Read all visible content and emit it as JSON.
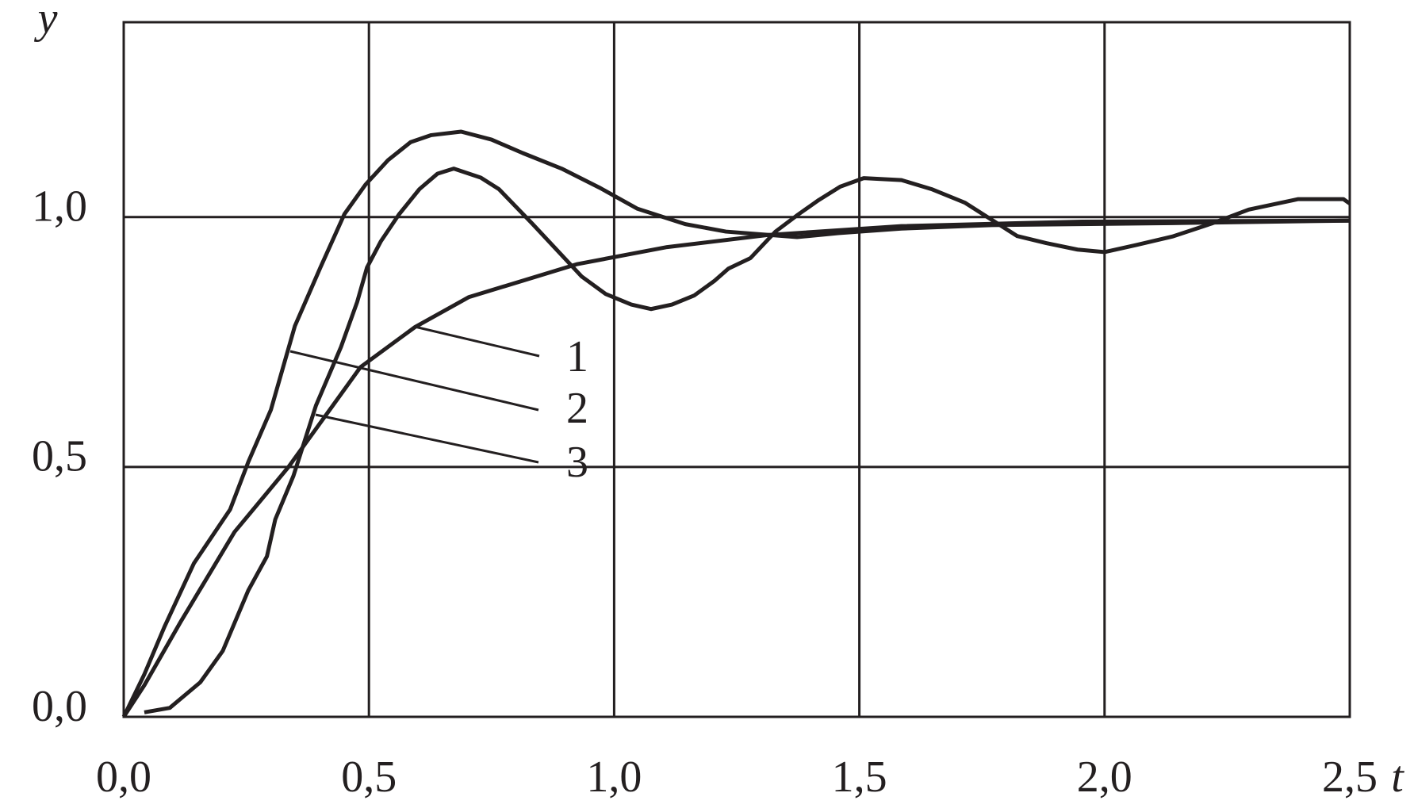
{
  "chart_data": {
    "type": "line",
    "x_label": "t",
    "y_label": "y",
    "xlim": [
      0,
      2.5
    ],
    "ylim": [
      0,
      1.39
    ],
    "xticks": [
      {
        "value": 0,
        "label": "0,0"
      },
      {
        "value": 0.5,
        "label": "0,5"
      },
      {
        "value": 1,
        "label": "1,0"
      },
      {
        "value": 1.5,
        "label": "1,5"
      },
      {
        "value": 2,
        "label": "2,0"
      },
      {
        "value": 2.5,
        "label": "2,5"
      }
    ],
    "yticks": [
      {
        "value": 0,
        "label": "0,0"
      },
      {
        "value": 0.5,
        "label": "0,5"
      },
      {
        "value": 1,
        "label": "1,0"
      }
    ],
    "grid": true,
    "series": [
      {
        "name": "1",
        "color": "#231f20",
        "x": [
          0,
          0.042,
          0.116,
          0.226,
          0.336,
          0.483,
          0.594,
          0.704,
          0.925,
          1.108,
          1.311,
          1.586,
          1.954,
          2.5
        ],
        "values": [
          0,
          0.063,
          0.19,
          0.37,
          0.5,
          0.7,
          0.78,
          0.84,
          0.906,
          0.94,
          0.964,
          0.982,
          0.991,
          0.993
        ]
      },
      {
        "name": "2",
        "color": "#231f20",
        "x": [
          0,
          0.042,
          0.083,
          0.143,
          0.217,
          0.254,
          0.3,
          0.349,
          0.401,
          0.45,
          0.493,
          0.539,
          0.585,
          0.627,
          0.688,
          0.75,
          0.814,
          0.893,
          0.97,
          1.047,
          1.145,
          1.228,
          1.373,
          1.457,
          1.586,
          1.77,
          2.138,
          2.5
        ],
        "values": [
          0,
          0.085,
          0.18,
          0.307,
          0.415,
          0.51,
          0.614,
          0.782,
          0.899,
          1.006,
          1.065,
          1.114,
          1.15,
          1.164,
          1.171,
          1.155,
          1.128,
          1.097,
          1.059,
          1.017,
          0.986,
          0.971,
          0.96,
          0.968,
          0.977,
          0.984,
          0.988,
          0.993
        ]
      },
      {
        "name": "3",
        "color": "#231f20",
        "x": [
          0.042,
          0.094,
          0.156,
          0.202,
          0.254,
          0.292,
          0.309,
          0.346,
          0.392,
          0.443,
          0.476,
          0.496,
          0.524,
          0.561,
          0.603,
          0.64,
          0.673,
          0.728,
          0.765,
          0.833,
          0.934,
          0.983,
          1.035,
          1.075,
          1.118,
          1.163,
          1.204,
          1.233,
          1.278,
          1.329,
          1.375,
          1.417,
          1.461,
          1.509,
          1.586,
          1.647,
          1.715,
          1.822,
          1.881,
          1.945,
          2.0,
          2.064,
          2.138,
          2.221,
          2.294,
          2.395,
          2.487,
          2.5
        ],
        "values": [
          0.009,
          0.018,
          0.069,
          0.132,
          0.253,
          0.321,
          0.395,
          0.482,
          0.623,
          0.74,
          0.83,
          0.899,
          0.951,
          1.005,
          1.056,
          1.087,
          1.097,
          1.079,
          1.056,
          0.987,
          0.881,
          0.846,
          0.825,
          0.816,
          0.825,
          0.843,
          0.872,
          0.897,
          0.918,
          0.971,
          1.005,
          1.034,
          1.061,
          1.078,
          1.074,
          1.056,
          1.029,
          0.962,
          0.948,
          0.935,
          0.93,
          0.944,
          0.961,
          0.988,
          1.015,
          1.036,
          1.036,
          1.027
        ]
      }
    ]
  }
}
